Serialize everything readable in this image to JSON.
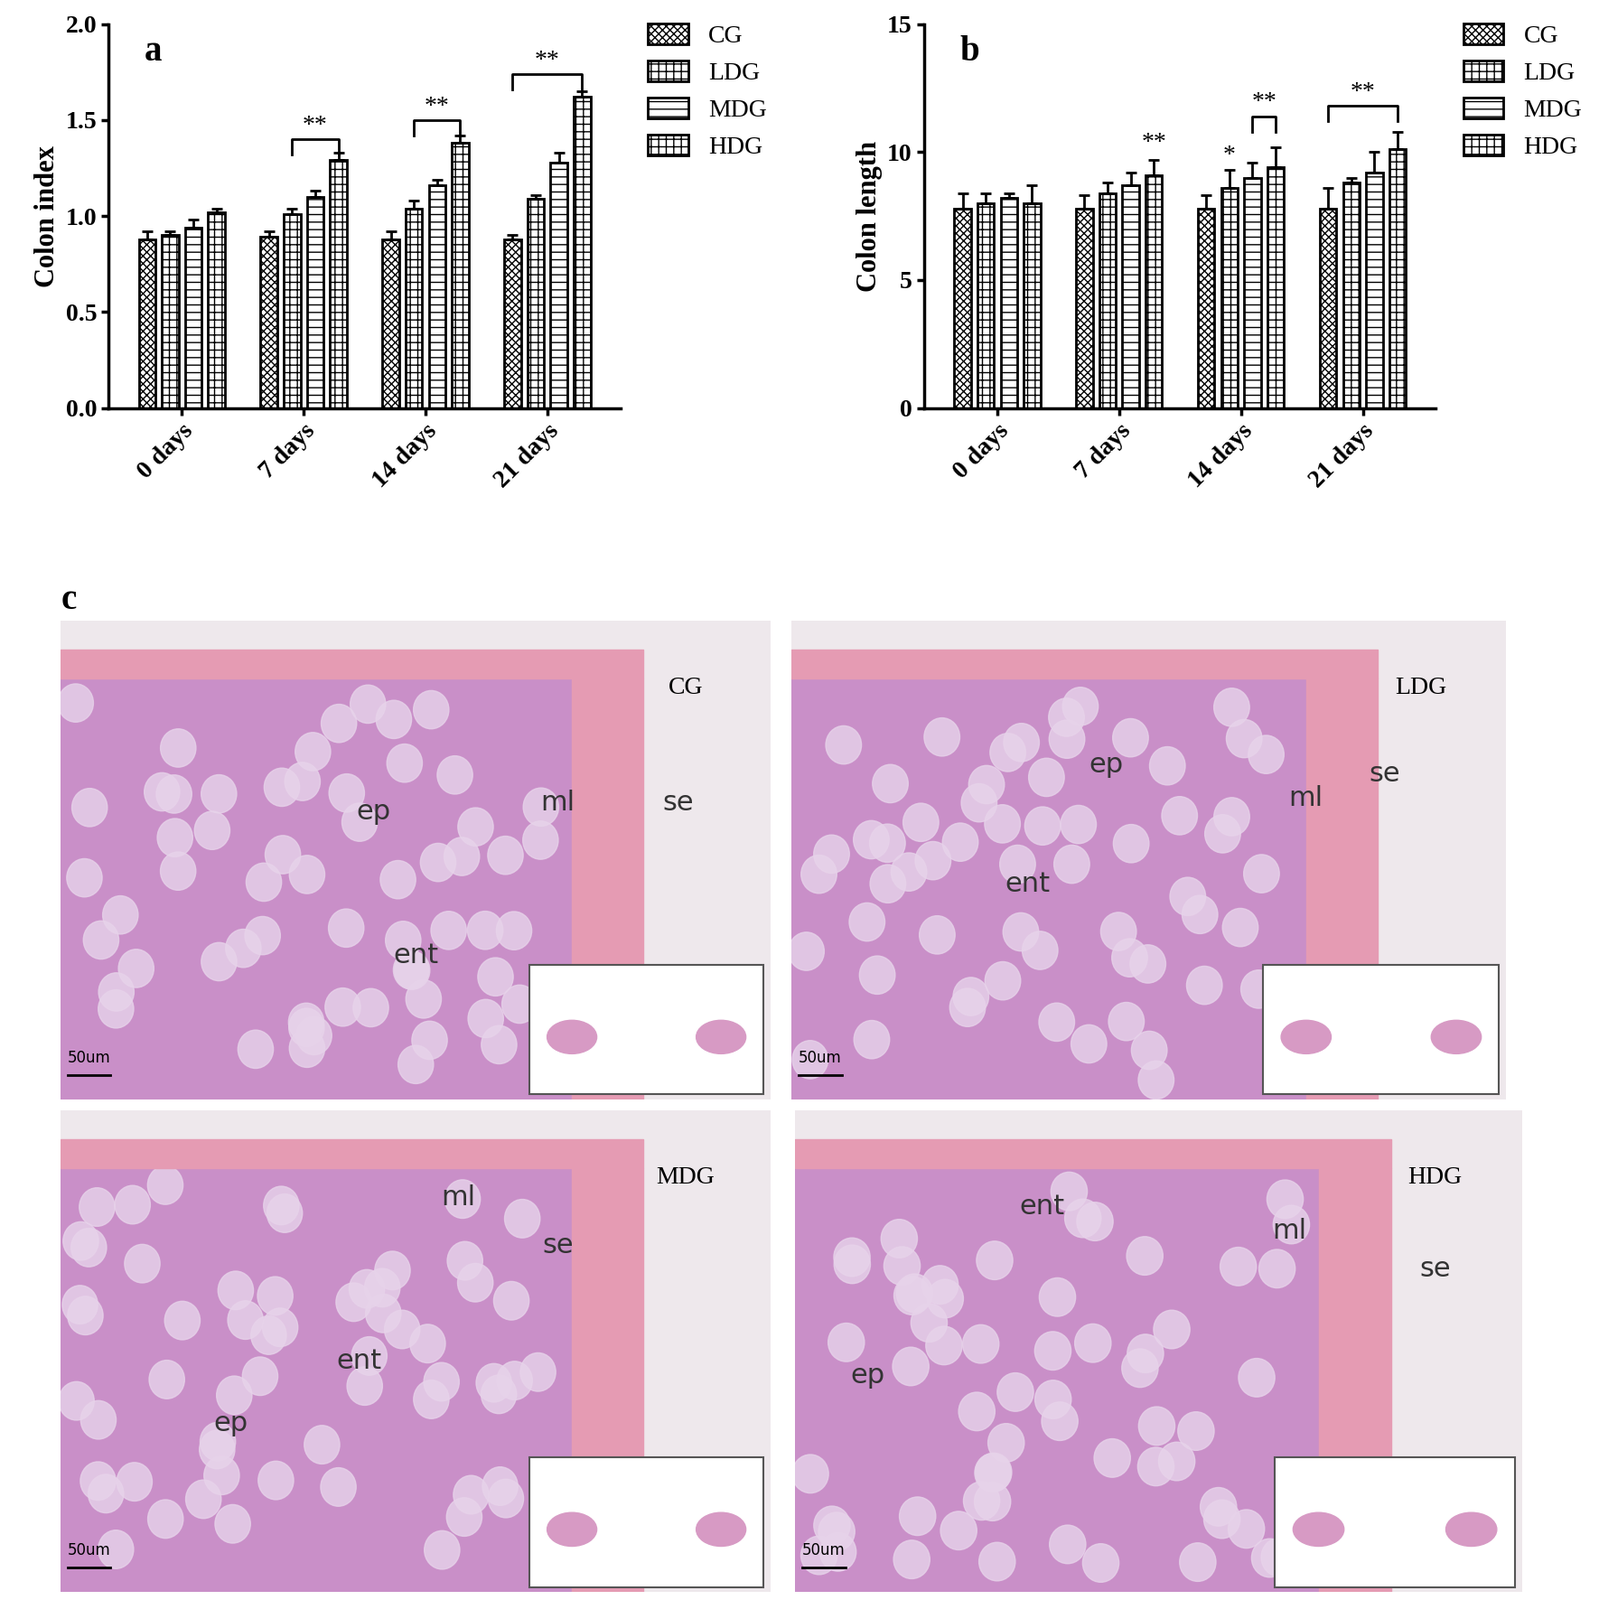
{
  "chart_data": [
    {
      "type": "bar",
      "label": "a",
      "y_label": "Colon index",
      "categories": [
        "0 days",
        "7 days",
        "14 days",
        "21 days"
      ],
      "series": [
        {
          "name": "CG",
          "color": "#ffffff",
          "values": [
            0.88,
            0.89,
            0.88,
            0.88
          ],
          "errors": [
            0.04,
            0.03,
            0.04,
            0.02
          ]
        },
        {
          "name": "LDG",
          "color": "#ffffff",
          "values": [
            0.9,
            1.01,
            1.04,
            1.09
          ],
          "errors": [
            0.02,
            0.03,
            0.04,
            0.02
          ]
        },
        {
          "name": "MDG",
          "color": "#ffffff",
          "values": [
            0.94,
            1.1,
            1.16,
            1.28
          ],
          "errors": [
            0.04,
            0.03,
            0.03,
            0.05
          ]
        },
        {
          "name": "HDG",
          "color": "#ffffff",
          "values": [
            1.02,
            1.29,
            1.38,
            1.62
          ],
          "errors": [
            0.02,
            0.04,
            0.04,
            0.03
          ]
        }
      ],
      "ylim": [
        0,
        2.0
      ],
      "yticks": [
        {
          "value": 0,
          "label": "0.0"
        },
        {
          "value": 0.5,
          "label": "0.5"
        },
        {
          "value": 1.0,
          "label": "1.0"
        },
        {
          "value": 1.5,
          "label": "1.5"
        },
        {
          "value": 2.0,
          "label": "2.0"
        }
      ],
      "legend": "upper right",
      "annotations": [
        {
          "text": "**",
          "category": "7 days",
          "series": [
            "LDG",
            "HDG"
          ],
          "y": 1.4
        },
        {
          "text": "**",
          "category": "14 days",
          "series": [
            "LDG",
            "HDG"
          ],
          "y": 1.5
        },
        {
          "text": "**",
          "category": "21 days",
          "series": [
            "CG",
            "HDG"
          ],
          "y": 1.74
        }
      ]
    },
    {
      "type": "bar",
      "label": "b",
      "y_label": "Colon length",
      "categories": [
        "0 days",
        "7 days",
        "14 days",
        "21 days"
      ],
      "series": [
        {
          "name": "CG",
          "color": "#ffffff",
          "values": [
            7.8,
            7.8,
            7.8,
            7.8
          ],
          "errors": [
            0.6,
            0.5,
            0.5,
            0.8
          ]
        },
        {
          "name": "LDG",
          "color": "#ffffff",
          "values": [
            8.0,
            8.4,
            8.6,
            8.8
          ],
          "errors": [
            0.4,
            0.4,
            0.7,
            0.2
          ]
        },
        {
          "name": "MDG",
          "color": "#ffffff",
          "values": [
            8.2,
            8.7,
            9.0,
            9.2
          ],
          "errors": [
            0.2,
            0.5,
            0.6,
            0.8
          ]
        },
        {
          "name": "HDG",
          "color": "#ffffff",
          "values": [
            8.0,
            9.1,
            9.4,
            10.1
          ],
          "errors": [
            0.7,
            0.6,
            0.8,
            0.7
          ]
        }
      ],
      "ylim": [
        0,
        15
      ],
      "yticks": [
        0,
        5,
        10,
        15
      ],
      "legend": "upper right",
      "annotations": [
        {
          "text": "**",
          "category": "7 days",
          "series": [
            "HDG"
          ],
          "y": 9.9
        },
        {
          "text": "*",
          "category": "14 days",
          "series": [
            "LDG"
          ],
          "y": 9.4
        },
        {
          "text": "**",
          "category": "14 days",
          "series": [
            "MDG",
            "HDG"
          ],
          "y": 11.4
        },
        {
          "text": "**",
          "category": "21 days",
          "series": [
            "CG",
            "HDG"
          ],
          "y": 11.8
        }
      ]
    }
  ],
  "panel_c": {
    "label": "c",
    "images": [
      {
        "name": "CG",
        "labels": [
          "ep",
          "ent",
          "ml",
          "se"
        ],
        "scale_bar": "50um"
      },
      {
        "name": "LDG",
        "labels": [
          "ep",
          "ent",
          "ml",
          "se"
        ],
        "scale_bar": "50um"
      },
      {
        "name": "MDG",
        "labels": [
          "ep",
          "ent",
          "ml",
          "se"
        ],
        "scale_bar": "50um"
      },
      {
        "name": "HDG",
        "labels": [
          "ep",
          "ent",
          "ml",
          "se"
        ],
        "scale_bar": "50um"
      }
    ]
  }
}
